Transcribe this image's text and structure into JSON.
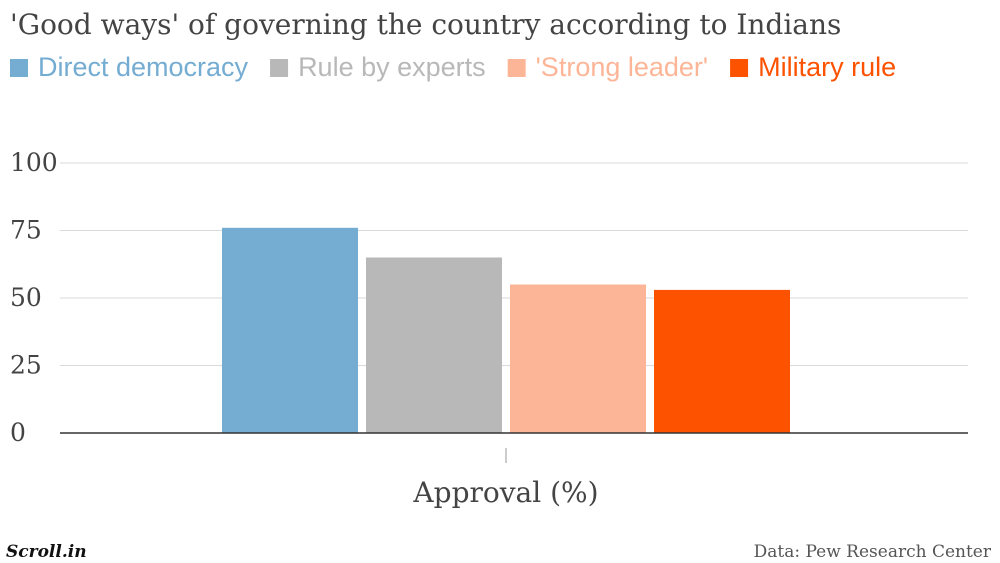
{
  "chart_data": {
    "type": "bar",
    "title": "'Good ways' of governing the country according to Indians",
    "categories": [
      "Approval (%)"
    ],
    "series": [
      {
        "name": "Direct democracy",
        "values": [
          76
        ],
        "color": "#74ACD2"
      },
      {
        "name": "Rule by experts",
        "values": [
          65
        ],
        "color": "#B8B8B8"
      },
      {
        "name": "'Strong leader'",
        "values": [
          55
        ],
        "color": "#FDB597"
      },
      {
        "name": "Military rule",
        "values": [
          53
        ],
        "color": "#FD5200"
      }
    ],
    "ylim": [
      0,
      100
    ],
    "yticks": [
      "0",
      "25",
      "50",
      "75",
      "100"
    ],
    "grid": true,
    "legend": "top-left"
  },
  "footer": {
    "logo": "Scroll.in",
    "source": "Data: Pew Research Center"
  }
}
